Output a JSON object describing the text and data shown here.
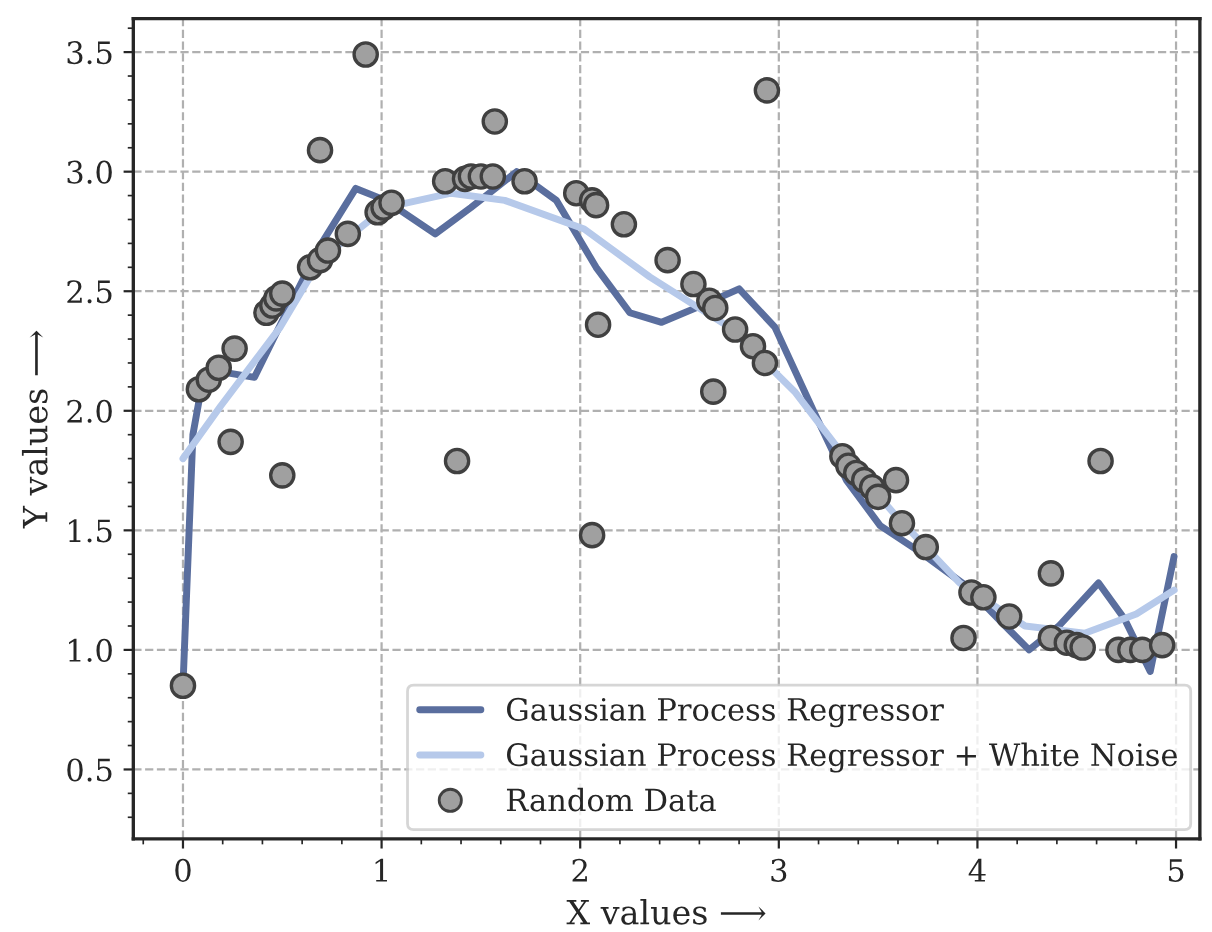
{
  "chart_data": {
    "type": "scatter",
    "xlabel": "X values ⟶",
    "ylabel": "Y values ⟶",
    "xlim": [
      -0.25,
      5.12
    ],
    "ylim": [
      0.21,
      3.64
    ],
    "xticks": [
      0,
      1,
      2,
      3,
      4,
      5
    ],
    "yticks": [
      0.5,
      {
        "value": 1,
        "label": "1.0"
      },
      1.5,
      {
        "value": 2,
        "label": "2.0"
      },
      2.5,
      {
        "value": 3,
        "label": "3.0"
      },
      3.5
    ],
    "grid": true,
    "legend": "bottom right",
    "marker": "circle",
    "series": [
      {
        "name": "Gaussian Process Regressor",
        "type": "line",
        "marker": "none",
        "color": "#5a6e9e",
        "line_style": "solid",
        "x": [
          0,
          0.05,
          0.1,
          0.14,
          0.36,
          0.52,
          0.69,
          0.87,
          1.02,
          1.27,
          1.45,
          1.68,
          1.88,
          2.08,
          2.25,
          2.41,
          2.61,
          2.8,
          2.98,
          3.18,
          3.34,
          3.51,
          3.71,
          3.94,
          4.14,
          4.26,
          4.41,
          4.61,
          4.74,
          4.87,
          4.99
        ],
        "values": [
          0.85,
          1.9,
          2.13,
          2.17,
          2.14,
          2.41,
          2.69,
          2.93,
          2.88,
          2.74,
          2.85,
          3.0,
          2.88,
          2.6,
          2.41,
          2.37,
          2.44,
          2.51,
          2.35,
          1.99,
          1.71,
          1.52,
          1.41,
          1.27,
          1.1,
          1.0,
          1.1,
          1.28,
          1.13,
          0.91,
          1.39
        ]
      },
      {
        "name": "Gaussian Process Regressor + White Noise",
        "type": "line",
        "marker": "none",
        "color": "#b6c9ea",
        "line_style": "solid",
        "x": [
          0,
          0.19,
          0.49,
          0.69,
          1.02,
          1.35,
          1.62,
          2.02,
          2.35,
          2.75,
          3.08,
          3.31,
          3.58,
          3.91,
          4.24,
          4.54,
          4.8,
          4.99
        ],
        "values": [
          1.8,
          2.02,
          2.35,
          2.63,
          2.85,
          2.91,
          2.88,
          2.76,
          2.56,
          2.35,
          2.08,
          1.83,
          1.57,
          1.28,
          1.1,
          1.07,
          1.15,
          1.25
        ]
      },
      {
        "name": "Random Data",
        "color": "#a0a0a0",
        "x": [
          0,
          0.08,
          0.13,
          0.18,
          0.26,
          0.24,
          0.5,
          0.42,
          0.45,
          0.47,
          0.5,
          0.64,
          0.69,
          0.73,
          0.69,
          0.83,
          0.92,
          0.98,
          1.01,
          1.05,
          1.32,
          1.42,
          1.45,
          1.5,
          1.56,
          1.57,
          1.72,
          1.38,
          1.98,
          2.06,
          2.08,
          2.09,
          2.22,
          2.44,
          2.06,
          2.94,
          2.57,
          2.65,
          2.68,
          2.67,
          2.78,
          2.87,
          2.93,
          3.32,
          3.35,
          3.39,
          3.43,
          3.47,
          3.5,
          3.59,
          3.62,
          3.74,
          3.97,
          4.03,
          4.16,
          3.93,
          4.37,
          4.37,
          4.45,
          4.5,
          4.53,
          4.62,
          4.71,
          4.77,
          4.83,
          4.93
        ],
        "values": [
          0.85,
          2.09,
          2.13,
          2.18,
          2.26,
          1.87,
          1.73,
          2.41,
          2.44,
          2.47,
          2.49,
          2.6,
          2.63,
          2.67,
          3.09,
          2.74,
          3.49,
          2.83,
          2.85,
          2.87,
          2.96,
          2.97,
          2.98,
          2.98,
          2.98,
          3.21,
          2.96,
          1.79,
          2.91,
          2.88,
          2.86,
          2.36,
          2.78,
          2.63,
          1.48,
          3.34,
          2.53,
          2.46,
          2.43,
          2.08,
          2.34,
          2.27,
          2.2,
          1.81,
          1.77,
          1.74,
          1.71,
          1.68,
          1.64,
          1.71,
          1.53,
          1.43,
          1.24,
          1.22,
          1.14,
          1.05,
          1.32,
          1.05,
          1.03,
          1.02,
          1.01,
          1.79,
          1.0,
          1.0,
          1.0,
          1.02
        ]
      }
    ]
  }
}
